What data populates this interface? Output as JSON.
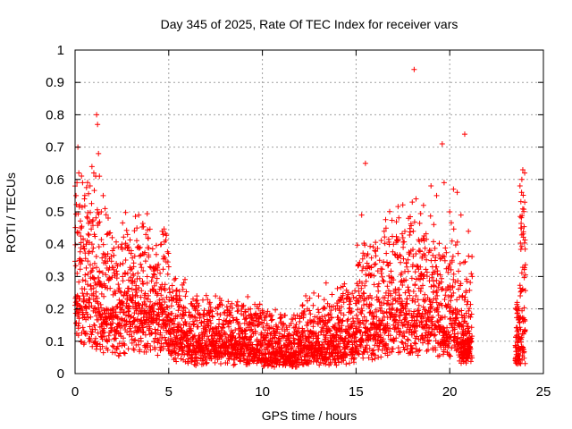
{
  "chart_data": {
    "type": "scatter",
    "title": "Day 345 of 2025, Rate Of TEC Index for receiver vars",
    "xlabel": "GPS time / hours",
    "ylabel": "ROTI / TECUs",
    "xlim": [
      0,
      25
    ],
    "ylim": [
      0,
      1
    ],
    "xticks": [
      0,
      5,
      10,
      15,
      20,
      25
    ],
    "yticks": [
      0,
      0.1,
      0.2,
      0.3,
      0.4,
      0.5,
      0.6,
      0.7,
      0.8,
      0.9,
      1
    ],
    "xtick_labels": [
      "0",
      "5",
      "10",
      "15",
      "20",
      "25"
    ],
    "ytick_labels": [
      "0",
      "0.1",
      "0.2",
      "0.3",
      "0.4",
      "0.5",
      "0.6",
      "0.7",
      "0.8",
      "0.9",
      "1"
    ],
    "grid": true,
    "legend": "none",
    "marker": "plus",
    "color": "#ff0000",
    "series": [
      {
        "points": [
          [
            0.05,
            0.55
          ],
          [
            0.1,
            0.59
          ],
          [
            0.15,
            0.7
          ],
          [
            0.2,
            0.62
          ],
          [
            0.25,
            0.52
          ],
          [
            0.3,
            0.45
          ],
          [
            0.4,
            0.59
          ],
          [
            0.5,
            0.54
          ],
          [
            0.6,
            0.4
          ],
          [
            0.8,
            0.58
          ],
          [
            0.9,
            0.64
          ],
          [
            1.0,
            0.62
          ],
          [
            1.1,
            0.61
          ],
          [
            1.15,
            0.8
          ],
          [
            1.2,
            0.77
          ],
          [
            1.25,
            0.68
          ],
          [
            1.3,
            0.61
          ],
          [
            1.4,
            0.5
          ],
          [
            1.5,
            0.55
          ],
          [
            1.6,
            0.51
          ],
          [
            1.7,
            0.43
          ],
          [
            2.0,
            0.38
          ],
          [
            2.2,
            0.34
          ],
          [
            2.5,
            0.4
          ],
          [
            2.8,
            0.43
          ],
          [
            3.0,
            0.38
          ],
          [
            3.3,
            0.45
          ],
          [
            3.4,
            0.49
          ],
          [
            3.6,
            0.37
          ],
          [
            4.0,
            0.33
          ],
          [
            4.4,
            0.32
          ],
          [
            4.6,
            0.4
          ],
          [
            4.65,
            0.44
          ],
          [
            4.7,
            0.43
          ],
          [
            5.0,
            0.33
          ],
          [
            5.3,
            0.29
          ],
          [
            5.8,
            0.28
          ],
          [
            6.5,
            0.24
          ],
          [
            7.2,
            0.22
          ],
          [
            7.5,
            0.24
          ],
          [
            8.0,
            0.19
          ],
          [
            9.0,
            0.18
          ],
          [
            10.0,
            0.19
          ],
          [
            10.5,
            0.18
          ],
          [
            11.0,
            0.16
          ],
          [
            12.0,
            0.17
          ],
          [
            13.0,
            0.24
          ],
          [
            13.4,
            0.28
          ],
          [
            14.0,
            0.21
          ],
          [
            14.5,
            0.23
          ],
          [
            15.3,
            0.49
          ],
          [
            15.5,
            0.65
          ],
          [
            16.0,
            0.38
          ],
          [
            16.5,
            0.44
          ],
          [
            17.0,
            0.4
          ],
          [
            17.5,
            0.42
          ],
          [
            17.8,
            0.48
          ],
          [
            18.0,
            0.53
          ],
          [
            18.1,
            0.94
          ],
          [
            18.2,
            0.54
          ],
          [
            18.6,
            0.52
          ],
          [
            19.0,
            0.58
          ],
          [
            19.3,
            0.55
          ],
          [
            19.6,
            0.71
          ],
          [
            19.7,
            0.59
          ],
          [
            20.0,
            0.5
          ],
          [
            20.2,
            0.57
          ],
          [
            20.4,
            0.56
          ],
          [
            20.6,
            0.49
          ],
          [
            20.8,
            0.74
          ],
          [
            21.0,
            0.44
          ],
          [
            21.2,
            0.3
          ],
          [
            23.6,
            0.22
          ],
          [
            23.7,
            0.2
          ],
          [
            23.8,
            0.45
          ],
          [
            23.85,
            0.6
          ],
          [
            23.9,
            0.63
          ],
          [
            24.0,
            0.62
          ]
        ]
      }
    ]
  }
}
